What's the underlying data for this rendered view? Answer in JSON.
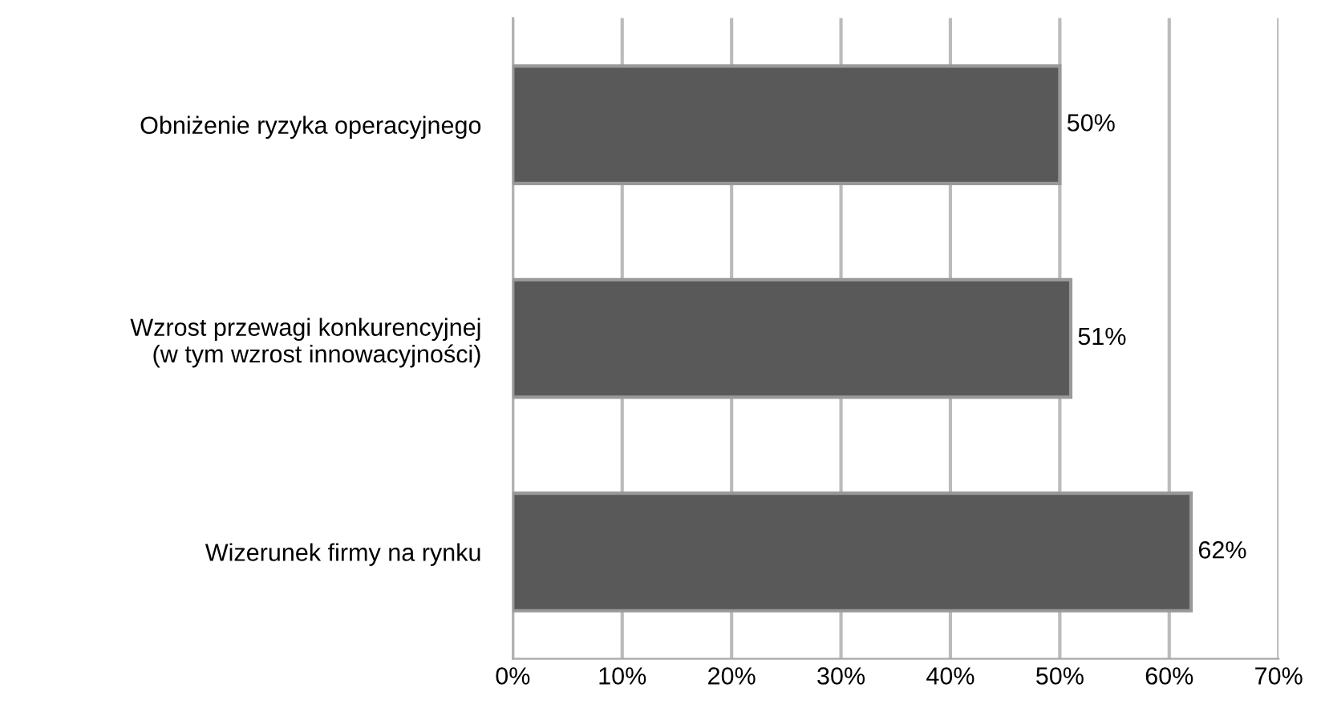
{
  "chart_data": {
    "type": "bar",
    "orientation": "horizontal",
    "categories": [
      "Obniżenie ryzyka operacyjnego",
      "Wzrost przewagi konkurencyjnej\n(w tym wzrost innowacyjności)",
      "Wizerunek firmy na rynku"
    ],
    "values": [
      50,
      51,
      62
    ],
    "color": "#595959",
    "value_labels": [
      "50%",
      "51%",
      "62%"
    ],
    "xlim": [
      0,
      70
    ],
    "xticks": [
      {
        "value": 0,
        "label": "0%"
      },
      {
        "value": 10,
        "label": "10%"
      },
      {
        "value": 20,
        "label": "20%"
      },
      {
        "value": 30,
        "label": "30%"
      },
      {
        "value": 40,
        "label": "40%"
      },
      {
        "value": 50,
        "label": "50%"
      },
      {
        "value": 60,
        "label": "60%"
      },
      {
        "value": 70,
        "label": "70%"
      }
    ],
    "grid": "x"
  }
}
